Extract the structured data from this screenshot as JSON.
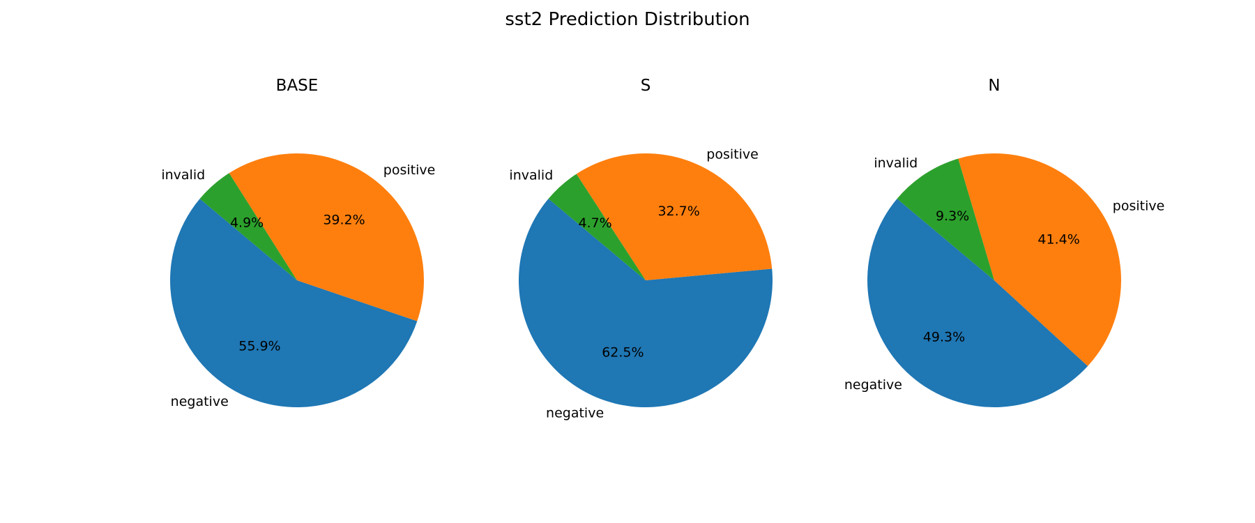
{
  "chart_data": {
    "type": "pie",
    "title": "sst2 Prediction Distribution",
    "categories": [
      "negative",
      "positive",
      "invalid"
    ],
    "colors": {
      "negative": "#1f77b4",
      "positive": "#ff7f0e",
      "invalid": "#2ca02c"
    },
    "start_angle_deg": 140,
    "counterclockwise": true,
    "pies": [
      {
        "title": "BASE",
        "slices": [
          {
            "label": "negative",
            "value": 55.9,
            "pct_label": "55.9%"
          },
          {
            "label": "positive",
            "value": 39.2,
            "pct_label": "39.2%"
          },
          {
            "label": "invalid",
            "value": 4.9,
            "pct_label": "4.9%"
          }
        ]
      },
      {
        "title": "S",
        "slices": [
          {
            "label": "negative",
            "value": 62.5,
            "pct_label": "62.5%"
          },
          {
            "label": "positive",
            "value": 32.7,
            "pct_label": "32.7%"
          },
          {
            "label": "invalid",
            "value": 4.7,
            "pct_label": "4.7%"
          }
        ]
      },
      {
        "title": "N",
        "slices": [
          {
            "label": "negative",
            "value": 49.3,
            "pct_label": "49.3%"
          },
          {
            "label": "positive",
            "value": 41.4,
            "pct_label": "41.4%"
          },
          {
            "label": "invalid",
            "value": 9.3,
            "pct_label": "9.3%"
          }
        ]
      }
    ]
  }
}
